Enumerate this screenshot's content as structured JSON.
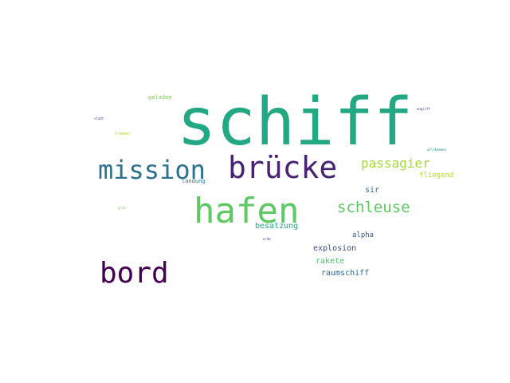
{
  "words": [
    {
      "text": "schiff",
      "color": "#23a884"
    },
    {
      "text": "mission",
      "color": "#2c718e"
    },
    {
      "text": "brücke",
      "color": "#482374"
    },
    {
      "text": "hafen",
      "color": "#5ec962"
    },
    {
      "text": "bord",
      "color": "#440154"
    },
    {
      "text": "passagier",
      "color": "#a5db36"
    },
    {
      "text": "schleuse",
      "color": "#5ec962"
    },
    {
      "text": "fliegend",
      "color": "#b5de2b"
    },
    {
      "text": "sir",
      "color": "#31688e"
    },
    {
      "text": "besatzung",
      "color": "#22a884"
    },
    {
      "text": "alpha",
      "color": "#3b528b"
    },
    {
      "text": "explosion",
      "color": "#3e4a89"
    },
    {
      "text": "rakete",
      "color": "#4ac16d"
    },
    {
      "text": "raumschiff",
      "color": "#31688e"
    },
    {
      "text": "geladen",
      "color": "#7ad151"
    },
    {
      "text": "landung",
      "color": "#2a788e"
    },
    {
      "text": "trümmer",
      "color": "#b5de2b"
    },
    {
      "text": "angriff",
      "color": "#46337f"
    },
    {
      "text": "willkommen",
      "color": "#21918c"
    },
    {
      "text": "stadt",
      "color": "#3e4a89"
    },
    {
      "text": "groß",
      "color": "#7ad151"
    },
    {
      "text": "erde",
      "color": "#414487"
    }
  ]
}
